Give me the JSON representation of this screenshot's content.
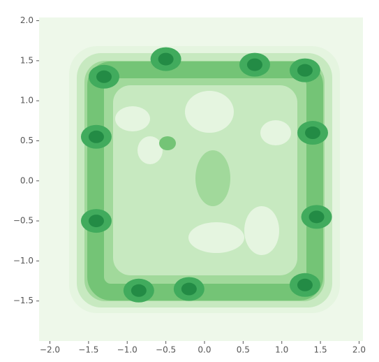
{
  "chart_data": {
    "type": "kde",
    "xlim": [
      -2.14,
      2.05
    ],
    "ylim": [
      -2.0,
      2.04
    ],
    "xticks": [
      {
        "value": -2,
        "label": "−2.0"
      },
      {
        "value": -1.5,
        "label": "−1.5"
      },
      {
        "value": -1,
        "label": "−1.0"
      },
      {
        "value": -0.5,
        "label": "−0.5"
      },
      {
        "value": 0,
        "label": "0.0"
      },
      {
        "value": 0.5,
        "label": "0.5"
      },
      {
        "value": 1,
        "label": "1.0"
      },
      {
        "value": 1.5,
        "label": "1.5"
      },
      {
        "value": 2,
        "label": "2.0"
      }
    ],
    "yticks": [
      {
        "value": -1.5,
        "label": "−1.5"
      },
      {
        "value": -1,
        "label": "−1.0"
      },
      {
        "value": -0.5,
        "label": "−0.5"
      },
      {
        "value": 0,
        "label": "0.0"
      },
      {
        "value": 0.5,
        "label": "0.5"
      },
      {
        "value": 1,
        "label": "1.0"
      },
      {
        "value": 1.5,
        "label": "1.5"
      },
      {
        "value": 2,
        "label": "2.0"
      }
    ],
    "background": "#eef8ea",
    "color": "#238b45",
    "peaks": {
      "x": [
        -1.3,
        1.3,
        1.3,
        -0.2,
        1.45,
        -1.4,
        0.65,
        -0.5,
        -0.85,
        -1.4,
        1.4
      ],
      "y": [
        1.3,
        1.38,
        -1.3,
        -1.35,
        -0.45,
        -0.5,
        1.45,
        1.52,
        -1.37,
        0.55,
        0.6
      ]
    }
  }
}
